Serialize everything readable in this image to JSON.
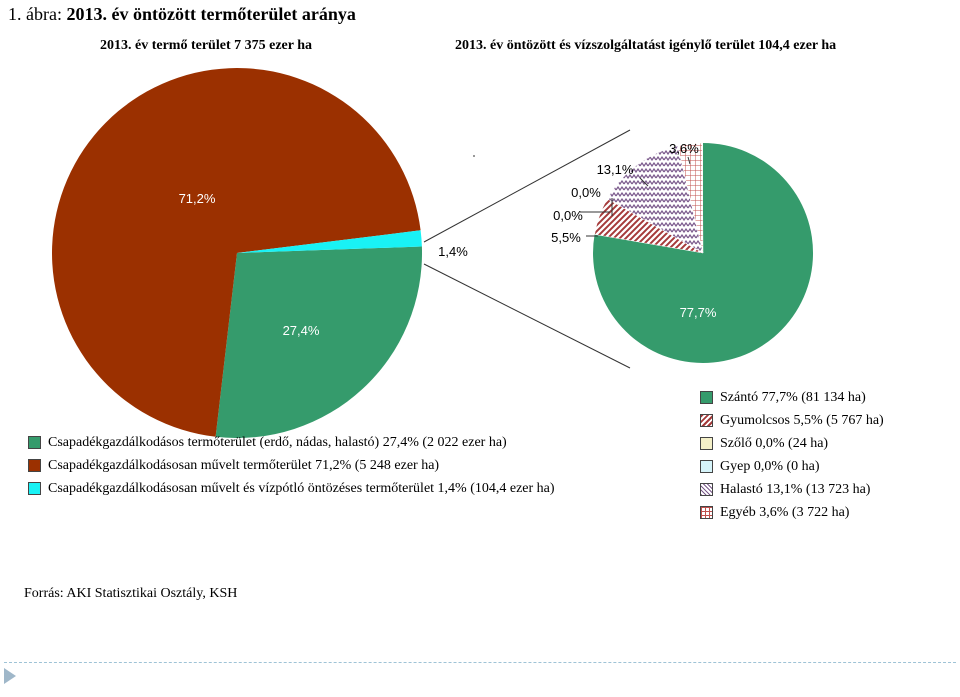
{
  "figure": {
    "title_prefix": "1. ábra:",
    "title_main": "2013. év öntözött termőterület aránya",
    "source": "Forrás: AKI Statisztikai Osztály, KSH"
  },
  "chart_data": [
    {
      "type": "pie",
      "title": "2013. év termő terület 7 375 ezer ha",
      "slices": [
        {
          "label": "Csapadékgazdálkodásos termőterület (erdő, nádas, halastó) 27,4% (2 022 ezer ha)",
          "value": 27.4,
          "data_label": "27,4%",
          "color": "#359b6c",
          "pattern": "solid"
        },
        {
          "label": "Csapadékgazdálkodásosan művelt termőterület 71,2% (5 248 ezer ha)",
          "value": 71.2,
          "data_label": "71,2%",
          "color": "#9b3000",
          "pattern": "solid"
        },
        {
          "label": "Csapadékgazdálkodásosan művelt és vízpótló öntözéses termőterület 1,4% (104,4 ezer ha)",
          "value": 1.4,
          "data_label": "1,4%",
          "color": "#19f2f5",
          "pattern": "solid"
        }
      ],
      "legend_position": "bottom"
    },
    {
      "type": "pie",
      "title": "2013. év öntözött és vízszolgáltatást igénylő terület 104,4 ezer ha",
      "slices": [
        {
          "label": "Szántó 77,7% (81 134 ha)",
          "value": 77.7,
          "data_label": "77,7%",
          "color": "#359b6c",
          "pattern": "solid"
        },
        {
          "label": "Gyumolcsos 5,5% (5 767 ha)",
          "value": 5.5,
          "data_label": "5,5%",
          "color": "#a53a3a",
          "pattern": "diagonal"
        },
        {
          "label": "Szőlő 0,0% (24 ha)",
          "value": 0.0,
          "data_label": "0,0%",
          "color": "#f4f0c8",
          "pattern": "solid"
        },
        {
          "label": "Gyep 0,0% (0 ha)",
          "value": 0.0,
          "data_label": "0,0%",
          "color": "#d6f4fa",
          "pattern": "solid"
        },
        {
          "label": "Halastó 13,1% (13 723 ha)",
          "value": 13.1,
          "data_label": "13,1%",
          "color": "#7b5a8c",
          "pattern": "zigzag"
        },
        {
          "label": "Egyéb 3,6% (3 722 ha)",
          "value": 3.6,
          "data_label": "3,6%",
          "color": "#c0504d",
          "pattern": "grid"
        }
      ],
      "legend_position": "right"
    }
  ]
}
